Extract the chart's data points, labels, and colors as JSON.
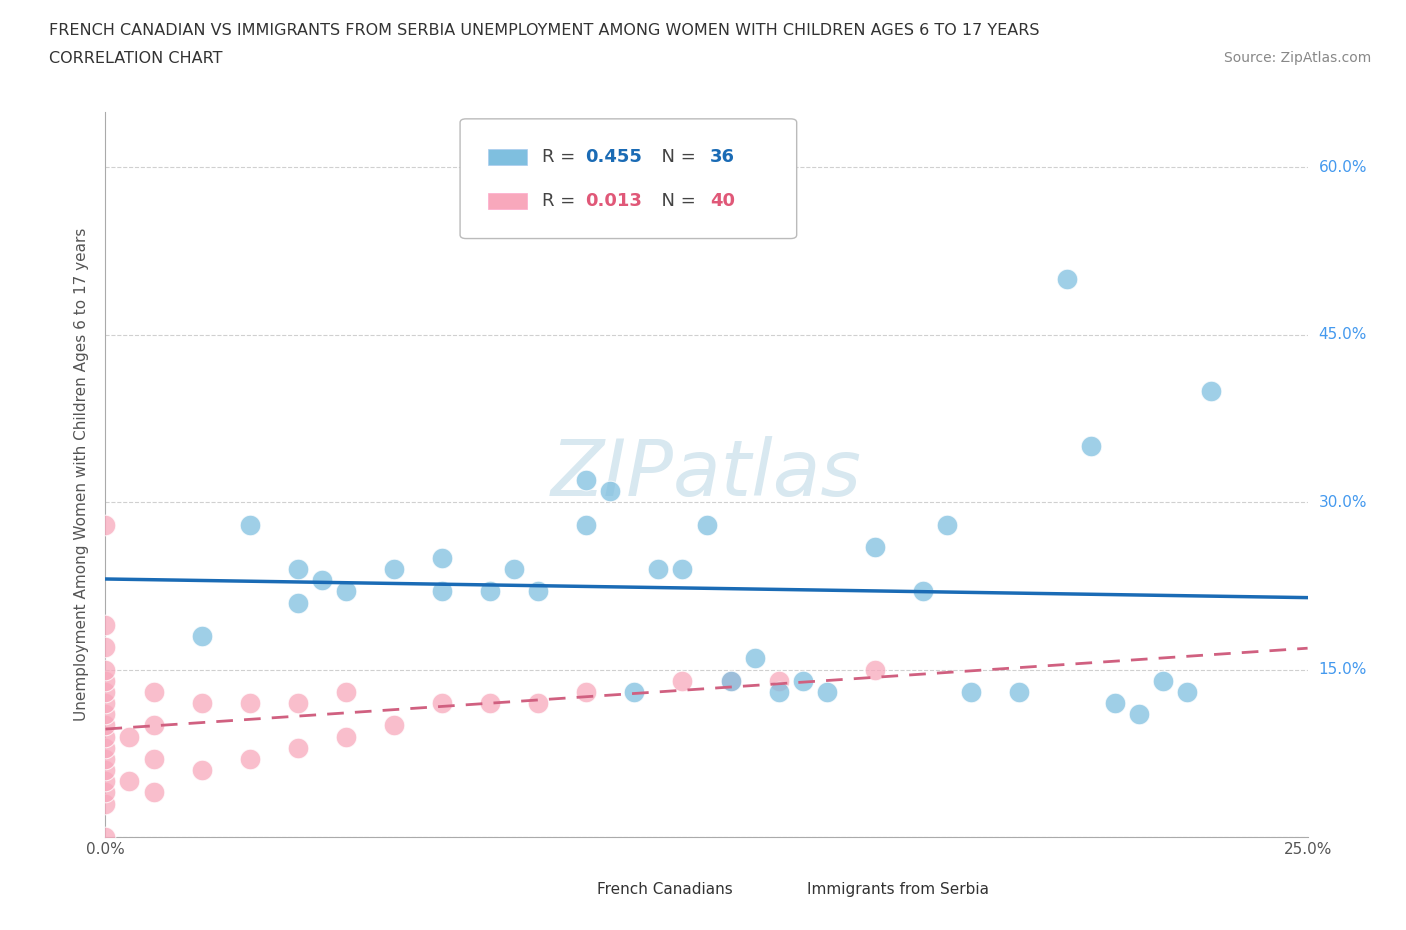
{
  "title_line1": "FRENCH CANADIAN VS IMMIGRANTS FROM SERBIA UNEMPLOYMENT AMONG WOMEN WITH CHILDREN AGES 6 TO 17 YEARS",
  "title_line2": "CORRELATION CHART",
  "source": "Source: ZipAtlas.com",
  "ylabel": "Unemployment Among Women with Children Ages 6 to 17 years",
  "x_min": 0.0,
  "x_max": 0.25,
  "y_min": 0.0,
  "y_max": 0.65,
  "x_ticks": [
    0.0,
    0.05,
    0.1,
    0.15,
    0.2,
    0.25
  ],
  "y_ticks": [
    0.0,
    0.15,
    0.3,
    0.45,
    0.6
  ],
  "grid_color": "#d0d0d0",
  "background_color": "#ffffff",
  "blue_color": "#7fbfdf",
  "pink_color": "#f8a8bc",
  "blue_line_color": "#1a6bb5",
  "pink_line_color": "#d06080",
  "blue_r_color": "#1a6bb5",
  "pink_r_color": "#e05878",
  "french_canadian_x": [
    0.02,
    0.03,
    0.04,
    0.04,
    0.045,
    0.05,
    0.06,
    0.07,
    0.07,
    0.08,
    0.085,
    0.09,
    0.1,
    0.1,
    0.105,
    0.11,
    0.115,
    0.12,
    0.125,
    0.13,
    0.135,
    0.14,
    0.145,
    0.15,
    0.16,
    0.17,
    0.175,
    0.18,
    0.19,
    0.2,
    0.205,
    0.21,
    0.215,
    0.22,
    0.225,
    0.23
  ],
  "french_canadian_y": [
    0.18,
    0.28,
    0.21,
    0.24,
    0.23,
    0.22,
    0.24,
    0.22,
    0.25,
    0.22,
    0.24,
    0.22,
    0.28,
    0.32,
    0.31,
    0.13,
    0.24,
    0.24,
    0.28,
    0.14,
    0.16,
    0.13,
    0.14,
    0.13,
    0.26,
    0.22,
    0.28,
    0.13,
    0.13,
    0.5,
    0.35,
    0.12,
    0.11,
    0.14,
    0.13,
    0.4
  ],
  "serbia_x": [
    0.0,
    0.0,
    0.0,
    0.0,
    0.0,
    0.0,
    0.0,
    0.0,
    0.0,
    0.0,
    0.0,
    0.0,
    0.0,
    0.0,
    0.0,
    0.0,
    0.005,
    0.005,
    0.01,
    0.01,
    0.01,
    0.01,
    0.02,
    0.02,
    0.03,
    0.03,
    0.04,
    0.04,
    0.05,
    0.05,
    0.06,
    0.07,
    0.08,
    0.09,
    0.1,
    0.12,
    0.13,
    0.14,
    0.16,
    0.0
  ],
  "serbia_y": [
    0.03,
    0.04,
    0.05,
    0.06,
    0.07,
    0.08,
    0.09,
    0.1,
    0.11,
    0.12,
    0.13,
    0.14,
    0.15,
    0.17,
    0.19,
    0.28,
    0.05,
    0.09,
    0.04,
    0.07,
    0.1,
    0.13,
    0.06,
    0.12,
    0.07,
    0.12,
    0.08,
    0.12,
    0.09,
    0.13,
    0.1,
    0.12,
    0.12,
    0.12,
    0.13,
    0.14,
    0.14,
    0.14,
    0.15,
    0.0
  ]
}
